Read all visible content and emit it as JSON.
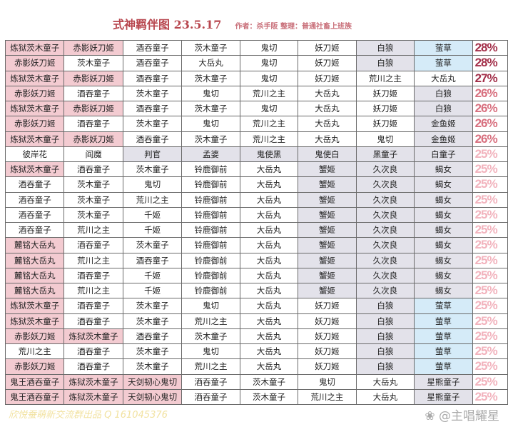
{
  "title": "式神羁伴图 23.5.17",
  "author": "作者：杀手阪 整理：普通社畜上班族",
  "colors": {
    "pink": "#f3cbd1",
    "grey": "#e3e2ea",
    "blue": "#d5ebf8",
    "pct_high": "#a3304a",
    "pct_mid": "#d8707f",
    "pct_low": "#f2b3bd"
  },
  "rows": [
    {
      "cells": [
        "炼狱茨木童子",
        "赤影妖刀姬",
        "酒吞童子",
        "茨木童子",
        "鬼切",
        "妖刀姬",
        "白狼",
        "萤草"
      ],
      "shade": "ppwwwwgb",
      "pct": "28%"
    },
    {
      "cells": [
        "赤影妖刀姬",
        "茨木童子",
        "酒吞童子",
        "大岳丸",
        "鬼切",
        "妖刀姬",
        "白狼",
        "萤草"
      ],
      "shade": "pwwwwwgb",
      "pct": "28%"
    },
    {
      "cells": [
        "炼狱茨木童子",
        "赤影妖刀姬",
        "酒吞童子",
        "茨木童子",
        "鬼切",
        "妖刀姬",
        "荒川之主",
        "大岳丸"
      ],
      "shade": "ppwwwwww",
      "pct": "27%"
    },
    {
      "cells": [
        "赤影妖刀姬",
        "酒吞童子",
        "茨木童子",
        "鬼切",
        "荒川之主",
        "大岳丸",
        "妖刀姬",
        "白狼"
      ],
      "shade": "pwwwwwwg",
      "pct": "26%"
    },
    {
      "cells": [
        "炼狱茨木童子",
        "赤影妖刀姬",
        "酒吞童子",
        "茨木童子",
        "鬼切",
        "大岳丸",
        "妖刀姬",
        "白狼"
      ],
      "shade": "ppwwwwwg",
      "pct": "26%"
    },
    {
      "cells": [
        "赤影妖刀姬",
        "酒吞童子",
        "茨木童子",
        "鬼切",
        "荒川之主",
        "大岳丸",
        "妖刀姬",
        "金鱼姬"
      ],
      "shade": "pwwwwwwg",
      "pct": "26%"
    },
    {
      "cells": [
        "炼狱茨木童子",
        "赤影妖刀姬",
        "酒吞童子",
        "茨木童子",
        "荒川之主",
        "大岳丸",
        "鬼切",
        "金鱼姬"
      ],
      "shade": "ppwwwwwg",
      "pct": "26%"
    },
    {
      "cells": [
        "彼岸花",
        "阎魔",
        "判官",
        "孟婆",
        "鬼使黑",
        "鬼使白",
        "黑童子",
        "白童子"
      ],
      "shade": "wwgggggg",
      "pct": "25%"
    },
    {
      "cells": [
        "炼狱茨木童子",
        "酒吞童子",
        "茨木童子",
        "铃鹿御前",
        "大岳丸",
        "蟹姬",
        "久次良",
        "蝎女"
      ],
      "shade": "pwwwwggg",
      "pct": "25%"
    },
    {
      "cells": [
        "酒吞童子",
        "茨木童子",
        "鬼切",
        "铃鹿御前",
        "大岳丸",
        "蟹姬",
        "久次良",
        "蝎女"
      ],
      "shade": "wwwwwggg",
      "pct": "25%"
    },
    {
      "cells": [
        "酒吞童子",
        "茨木童子",
        "荒川之主",
        "铃鹿御前",
        "大岳丸",
        "蟹姬",
        "久次良",
        "蝎女"
      ],
      "shade": "wwwwwggg",
      "pct": "25%"
    },
    {
      "cells": [
        "酒吞童子",
        "茨木童子",
        "千姬",
        "铃鹿御前",
        "大岳丸",
        "蟹姬",
        "久次良",
        "蝎女"
      ],
      "shade": "wwwwwggg",
      "pct": "25%"
    },
    {
      "cells": [
        "酒吞童子",
        "荒川之主",
        "千姬",
        "铃鹿御前",
        "大岳丸",
        "蟹姬",
        "久次良",
        "蝎女"
      ],
      "shade": "wwwwwggg",
      "pct": "25%"
    },
    {
      "cells": [
        "麓铭大岳丸",
        "酒吞童子",
        "茨木童子",
        "铃鹿御前",
        "大岳丸",
        "蟹姬",
        "久次良",
        "蝎女"
      ],
      "shade": "pwwwwggg",
      "pct": "25%"
    },
    {
      "cells": [
        "麓铭大岳丸",
        "荒川之主",
        "酒吞童子",
        "铃鹿御前",
        "大岳丸",
        "蟹姬",
        "久次良",
        "蝎女"
      ],
      "shade": "pwwwwggg",
      "pct": "25%"
    },
    {
      "cells": [
        "麓铭大岳丸",
        "酒吞童子",
        "千姬",
        "铃鹿御前",
        "大岳丸",
        "蟹姬",
        "久次良",
        "蝎女"
      ],
      "shade": "pwwwwggg",
      "pct": "25%"
    },
    {
      "cells": [
        "麓铭大岳丸",
        "荒川之主",
        "千姬",
        "铃鹿御前",
        "大岳丸",
        "蟹姬",
        "久次良",
        "蝎女"
      ],
      "shade": "pwwwwggg",
      "pct": "25%"
    },
    {
      "cells": [
        "炼狱茨木童子",
        "酒吞童子",
        "茨木童子",
        "鬼切",
        "大岳丸",
        "妖刀姬",
        "白狼",
        "萤草"
      ],
      "shade": "pwwwwwgb",
      "pct": "25%"
    },
    {
      "cells": [
        "炼狱茨木童子",
        "酒吞童子",
        "茨木童子",
        "荒川之主",
        "大岳丸",
        "妖刀姬",
        "白狼",
        "萤草"
      ],
      "shade": "pwwwwwgb",
      "pct": "25%"
    },
    {
      "cells": [
        "赤影妖刀姬",
        "炼狱茨木童子",
        "酒吞童子",
        "茨木童子",
        "大岳丸",
        "妖刀姬",
        "白狼",
        "萤草"
      ],
      "shade": "ppwwwwgb",
      "pct": "25%"
    },
    {
      "cells": [
        "荒川之主",
        "酒吞童子",
        "茨木童子",
        "鬼切",
        "大岳丸",
        "妖刀姬",
        "白狼",
        "萤草"
      ],
      "shade": "wwwwwwgb",
      "pct": "25%"
    },
    {
      "cells": [
        "赤影妖刀姬",
        "酒吞童子",
        "茨木童子",
        "荒川之主",
        "大岳丸",
        "妖刀姬",
        "白狼",
        "萤草"
      ],
      "shade": "pwwwwwgb",
      "pct": "25%"
    },
    {
      "cells": [
        "鬼王酒吞童子",
        "炼狱茨木童子",
        "天剑韧心鬼切",
        "酒吞童子",
        "茨木童子",
        "鬼切",
        "大岳丸",
        "星熊童子"
      ],
      "shade": "pppwwwwg",
      "pct": "25%"
    },
    {
      "cells": [
        "鬼王酒吞童子",
        "炼狱茨木童子",
        "天剑韧心鬼切",
        "酒吞童子",
        "茨木童子",
        "荒川之主",
        "大岳丸",
        "星熊童子"
      ],
      "shade": "pppwwwwg",
      "pct": "25%"
    }
  ],
  "watermark_left": "欣悦蚕萌新交流群出品 Q 161045376",
  "watermark_right": "@主唱耀星"
}
